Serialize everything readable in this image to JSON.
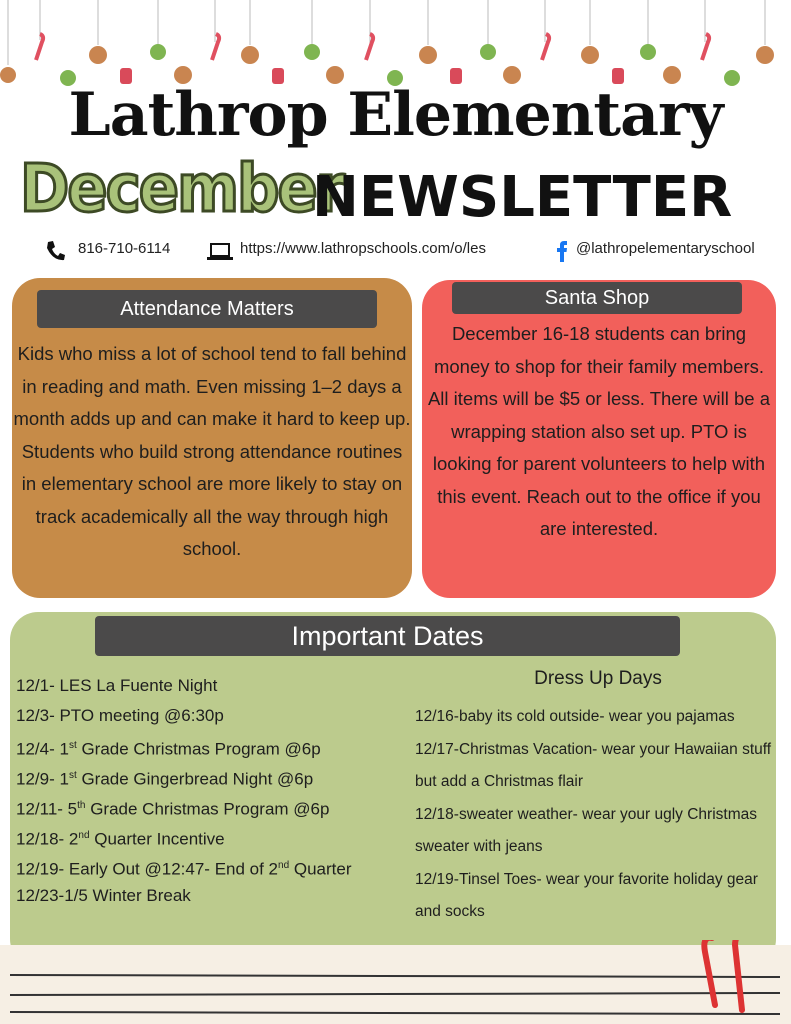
{
  "header": {
    "title": "Lathrop Elementary",
    "month": "December",
    "subtitle": "NEWSLETTER",
    "phone": "816-710-6114",
    "website": "https://www.lathropschools.com/o/les",
    "social": "@lathropelementaryschool"
  },
  "attendance": {
    "heading": "Attendance Matters",
    "body": "Kids who miss a lot of school tend to fall behind in reading and math. Even missing 1–2 days a month adds up and can make it hard to keep up. Students who build strong attendance routines in elementary school are more likely to stay on track academically all the way through high school."
  },
  "santa_shop": {
    "heading": "Santa Shop",
    "body": "December 16-18 students can bring money to shop for their family members. All items will be $5 or less. There will be a wrapping station also set up. PTO is looking for parent volunteers to help with this event. Reach out to the office if you are interested."
  },
  "dates": {
    "heading": "Important Dates",
    "items": [
      [
        "12/1- LES La Fuente Night"
      ],
      [
        "12/3- PTO meeting @6:30p"
      ],
      [
        "12/4- 1",
        "st",
        " Grade Christmas Program @6p"
      ],
      [
        "12/9- 1",
        "st",
        " Grade Gingerbread Night @6p"
      ],
      [
        "12/11- 5",
        "th",
        " Grade Christmas Program @6p"
      ],
      [
        "12/18- 2",
        "nd",
        " Quarter Incentive"
      ],
      [
        "12/19- Early Out @12:47- End of 2",
        "nd",
        " Quarter"
      ],
      [
        "12/23-1/5 Winter Break"
      ]
    ],
    "dress_up": {
      "heading": "Dress Up Days",
      "items": [
        "12/16-baby its cold outside- wear you pajamas",
        "12/17-Christmas Vacation- wear your Hawaiian stuff but add a Christmas flair",
        "12/18-sweater weather- wear your ugly Christmas sweater with jeans",
        "12/19-Tinsel Toes- wear your favorite holiday gear and socks"
      ]
    }
  }
}
